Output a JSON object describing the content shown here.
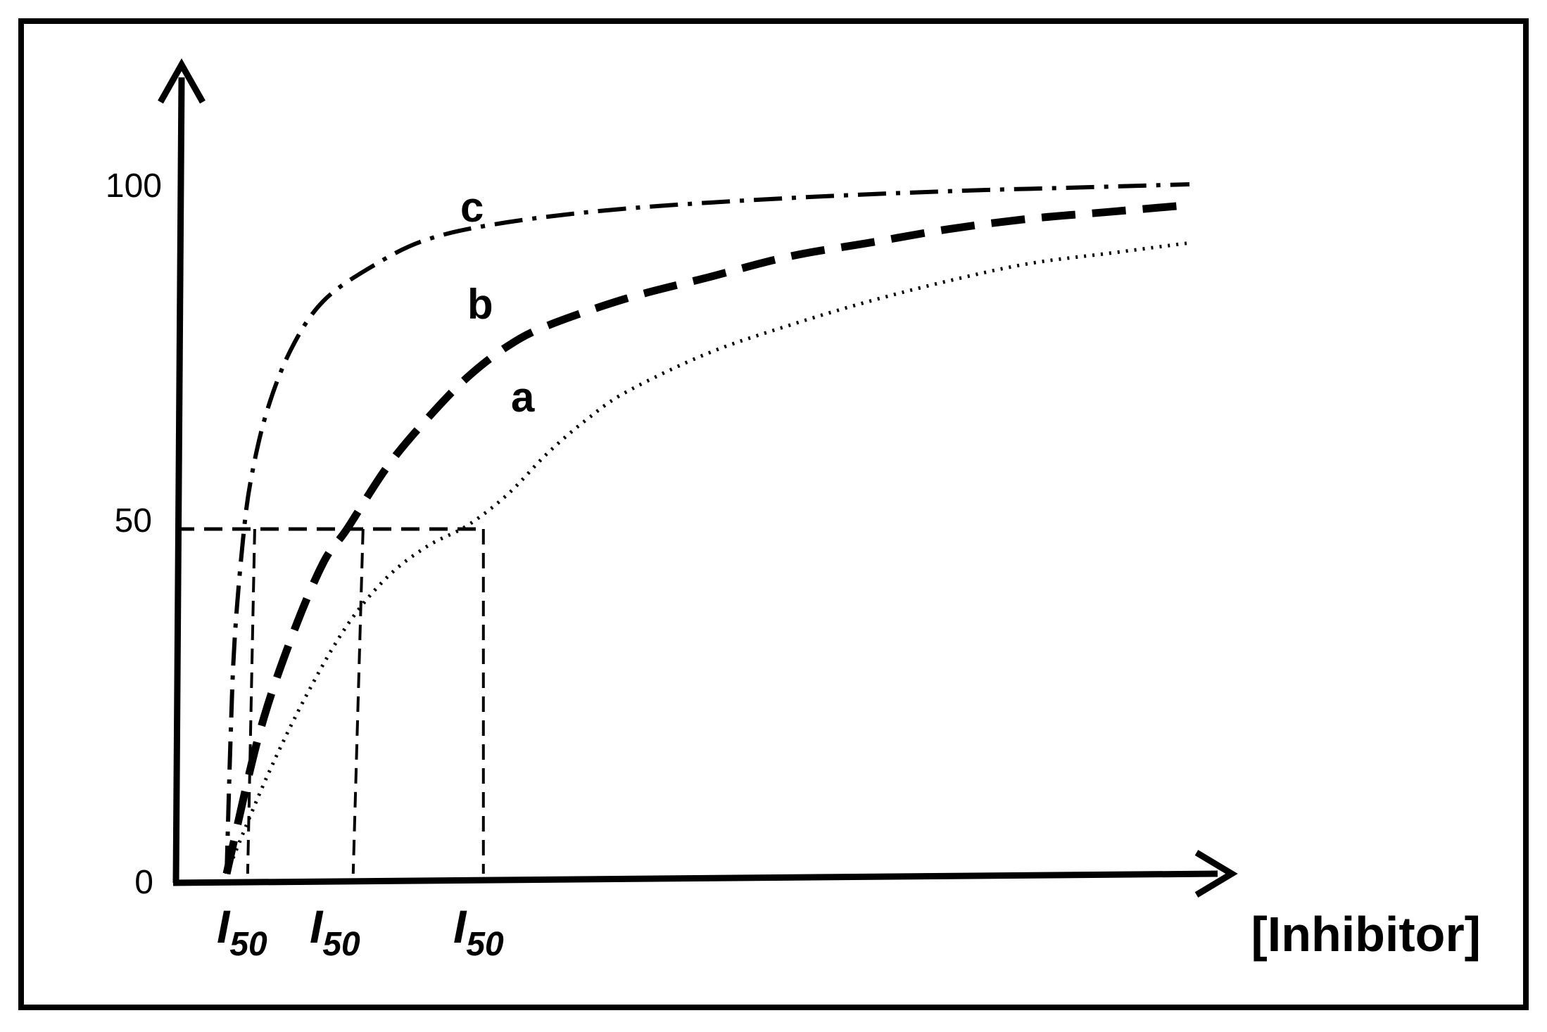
{
  "chart_data": {
    "type": "line",
    "title": "",
    "xlabel": "[Inhibitor]",
    "ylabel": "",
    "ylim": [
      0,
      100
    ],
    "yticks": [
      "0",
      "50",
      "100"
    ],
    "grid": false,
    "legend": "none",
    "x_tick_labels": [
      {
        "main": "I",
        "sub": "50",
        "curve": "c"
      },
      {
        "main": "I",
        "sub": "50",
        "curve": "b"
      },
      {
        "main": "I",
        "sub": "50",
        "curve": "a"
      }
    ],
    "i50_values": {
      "c": 0.035,
      "b": 0.17,
      "a": 0.32
    },
    "series": [
      {
        "name": "a",
        "style": "dotted",
        "values": [
          [
            0,
            0
          ],
          [
            0.05,
            14
          ],
          [
            0.1,
            26
          ],
          [
            0.15,
            36
          ],
          [
            0.2,
            43
          ],
          [
            0.25,
            47.5
          ],
          [
            0.3,
            50.5
          ],
          [
            0.35,
            55
          ],
          [
            0.4,
            61
          ],
          [
            0.45,
            66
          ],
          [
            0.5,
            70
          ],
          [
            0.6,
            75.5
          ],
          [
            0.7,
            79.5
          ],
          [
            0.8,
            83
          ],
          [
            0.9,
            86
          ],
          [
            1.0,
            88.5
          ],
          [
            1.1,
            90
          ],
          [
            1.2,
            91.5
          ]
        ]
      },
      {
        "name": "b",
        "style": "dashed",
        "values": [
          [
            0,
            0
          ],
          [
            0.04,
            20
          ],
          [
            0.08,
            34
          ],
          [
            0.12,
            45
          ],
          [
            0.15,
            50
          ],
          [
            0.2,
            59
          ],
          [
            0.25,
            66
          ],
          [
            0.3,
            72
          ],
          [
            0.35,
            76.5
          ],
          [
            0.4,
            79.5
          ],
          [
            0.5,
            83.5
          ],
          [
            0.6,
            86.5
          ],
          [
            0.7,
            89.5
          ],
          [
            0.8,
            91.5
          ],
          [
            0.9,
            93.5
          ],
          [
            1.0,
            95
          ],
          [
            1.1,
            96
          ],
          [
            1.2,
            97
          ]
        ]
      },
      {
        "name": "c",
        "style": "dash-dot",
        "values": [
          [
            0,
            0
          ],
          [
            0.005,
            20
          ],
          [
            0.01,
            34
          ],
          [
            0.02,
            48
          ],
          [
            0.03,
            57
          ],
          [
            0.05,
            67
          ],
          [
            0.08,
            76
          ],
          [
            0.12,
            83
          ],
          [
            0.18,
            88
          ],
          [
            0.25,
            92
          ],
          [
            0.35,
            94.5
          ],
          [
            0.5,
            96.5
          ],
          [
            0.7,
            98
          ],
          [
            0.9,
            99
          ],
          [
            1.05,
            99.5
          ],
          [
            1.2,
            100
          ]
        ]
      }
    ]
  }
}
